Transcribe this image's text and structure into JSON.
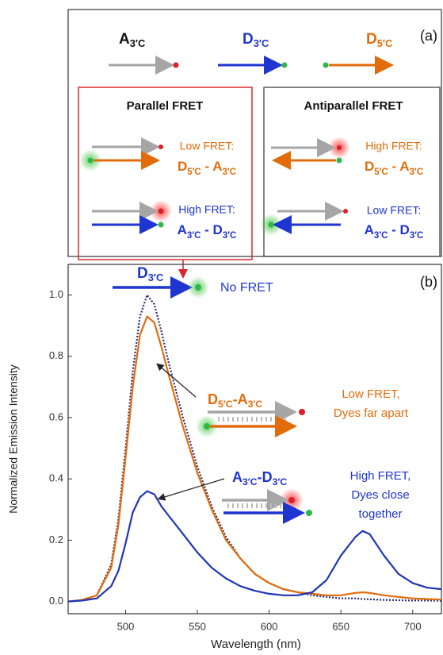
{
  "panel_a": {
    "label": "(a)",
    "strands": [
      [
        "A",
        "3′C"
      ],
      [
        "D",
        "3′C"
      ],
      [
        "D",
        "5′C"
      ]
    ],
    "parallel": {
      "title": "Parallel FRET",
      "rows": [
        {
          "state": "Low FRET:",
          "pair": [
            "D",
            "5′C",
            " - A",
            "3′C"
          ]
        },
        {
          "state": "High FRET:",
          "pair": [
            "A",
            "3′C",
            " - D",
            "3′C"
          ]
        }
      ]
    },
    "antiparallel": {
      "title": "Antiparallel FRET",
      "rows": [
        {
          "state": "High FRET:",
          "pair": [
            "D",
            "5′C",
            " - A",
            "3′C"
          ]
        },
        {
          "state": "Low FRET:",
          "pair": [
            "A",
            "3′C",
            " - D",
            "3′C"
          ]
        }
      ]
    }
  },
  "chart_data": {
    "type": "line",
    "panel_label": "(b)",
    "xlabel": "Wavelength (nm)",
    "ylabel": "Normalized Emission Intensity",
    "x": [
      460,
      470,
      480,
      490,
      495,
      500,
      505,
      510,
      515,
      520,
      525,
      530,
      540,
      550,
      560,
      570,
      580,
      590,
      600,
      610,
      620,
      630,
      640,
      650,
      660,
      665,
      670,
      680,
      690,
      700,
      710,
      720
    ],
    "series": [
      {
        "color": "#2a2a7a",
        "dash": "dotted",
        "values": [
          0.0,
          0.005,
          0.02,
          0.12,
          0.27,
          0.5,
          0.75,
          0.93,
          1.0,
          0.97,
          0.88,
          0.78,
          0.6,
          0.44,
          0.31,
          0.21,
          0.14,
          0.09,
          0.06,
          0.04,
          0.03,
          0.02,
          0.015,
          0.01,
          0.01,
          0.008,
          0.007,
          0.005,
          0.004,
          0.003,
          0.003,
          0.002
        ]
      },
      {
        "color": "#e36c0a",
        "dash": "solid",
        "values": [
          0.0,
          0.005,
          0.02,
          0.11,
          0.25,
          0.47,
          0.7,
          0.87,
          0.93,
          0.91,
          0.83,
          0.74,
          0.57,
          0.42,
          0.3,
          0.2,
          0.14,
          0.09,
          0.06,
          0.04,
          0.03,
          0.025,
          0.02,
          0.02,
          0.028,
          0.03,
          0.028,
          0.02,
          0.015,
          0.01,
          0.008,
          0.006
        ]
      },
      {
        "color": "#1f35b5",
        "dash": "solid",
        "values": [
          0.0,
          0.003,
          0.01,
          0.05,
          0.1,
          0.19,
          0.29,
          0.34,
          0.36,
          0.35,
          0.31,
          0.28,
          0.22,
          0.16,
          0.11,
          0.075,
          0.05,
          0.035,
          0.025,
          0.02,
          0.02,
          0.03,
          0.07,
          0.15,
          0.21,
          0.23,
          0.22,
          0.15,
          0.09,
          0.06,
          0.045,
          0.04
        ]
      }
    ],
    "xlim": [
      460,
      720
    ],
    "xticks": [
      500,
      550,
      600,
      650,
      700
    ],
    "ylim": [
      -0.04,
      1.1
    ],
    "yticks": [
      {
        "value": 0,
        "label": "0.0"
      },
      0.2,
      0.4,
      0.6,
      0.8,
      {
        "value": 1,
        "label": "1.0"
      }
    ],
    "strand_labels": [
      [
        "D",
        "3′C"
      ],
      [
        "D",
        "5′C",
        "-A",
        "3′C"
      ],
      [
        "A",
        "3′C",
        "-D",
        "3′C"
      ]
    ],
    "notes": [
      [
        "No FRET"
      ],
      [
        "Low FRET,",
        "Dyes far apart"
      ],
      [
        "High FRET,",
        "Dyes close",
        "together"
      ]
    ]
  }
}
